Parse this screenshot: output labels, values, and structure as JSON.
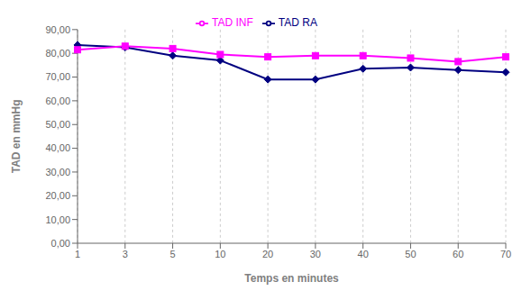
{
  "chart_data": {
    "type": "line",
    "categories": [
      "1",
      "3",
      "5",
      "10",
      "20",
      "30",
      "40",
      "50",
      "60",
      "70"
    ],
    "series": [
      {
        "name": "TAD RA",
        "color": "#000080",
        "marker": "diamond",
        "line_style": "solid",
        "values": [
          83.5,
          82.5,
          79.0,
          77.0,
          69.0,
          69.0,
          73.5,
          74.0,
          73.0,
          72.0
        ]
      },
      {
        "name": "TAD INF",
        "color": "#FF00FF",
        "marker": "square",
        "line_style": "solid",
        "values": [
          81.5,
          83.0,
          82.0,
          79.5,
          78.5,
          79.0,
          79.0,
          78.0,
          76.5,
          78.5
        ]
      }
    ],
    "x_label": "Temps en minutes",
    "y_label": "TAD en mmHg",
    "ylim": [
      0,
      90
    ],
    "yticks": [
      {
        "value": 0,
        "label": "0,00"
      },
      {
        "value": 10,
        "label": "10,00"
      },
      {
        "value": 20,
        "label": "20,00"
      },
      {
        "value": 30,
        "label": "30,00"
      },
      {
        "value": 40,
        "label": "40,00"
      },
      {
        "value": 50,
        "label": "50,00"
      },
      {
        "value": 60,
        "label": "60,00"
      },
      {
        "value": 70,
        "label": "70,00"
      },
      {
        "value": 80,
        "label": "80,00"
      },
      {
        "value": 90,
        "label": "90,00"
      }
    ],
    "grid": "x",
    "legend": "top"
  }
}
